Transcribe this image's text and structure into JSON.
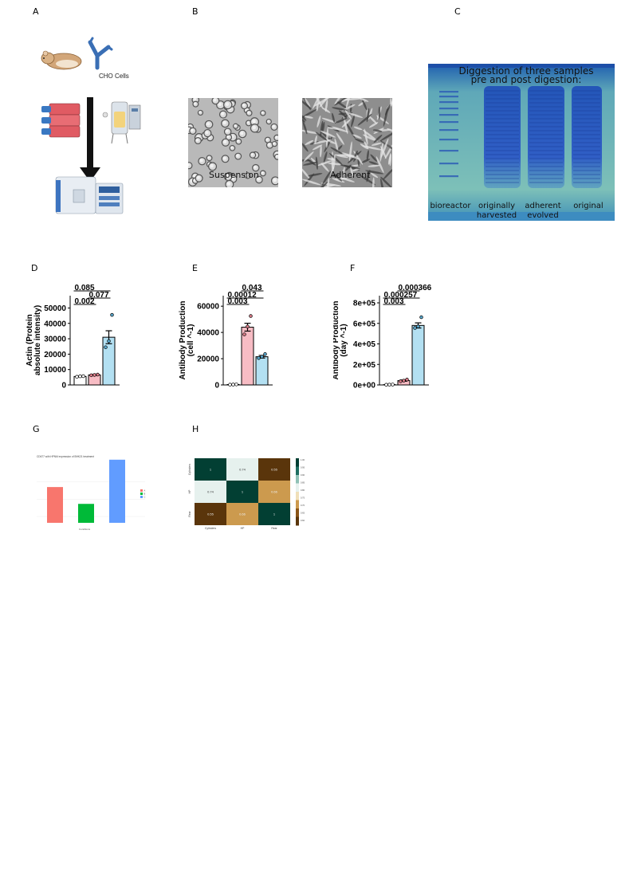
{
  "panel_letters": [
    "A",
    "B",
    "C",
    "D",
    "E",
    "F",
    "G",
    "H"
  ],
  "panel_a": {
    "caption": "CHO Cells",
    "icons": [
      "hamster-icon",
      "antibody-icon",
      "flask-stack-icon",
      "bioreactor-icon",
      "arrow-down-icon",
      "mass-spectrometer-icon"
    ]
  },
  "panel_b": {
    "images": [
      {
        "label": "Suspension"
      },
      {
        "label": "Adherent"
      }
    ]
  },
  "panel_c": {
    "title_line1": "Diggestion of three samples",
    "title_line2": "pre and post digestion:",
    "lanes": [
      {
        "line1": "bioreactor",
        "line2": ""
      },
      {
        "line1": "originally",
        "line2": "harvested"
      },
      {
        "line1": "adherent",
        "line2": "evolved"
      },
      {
        "line1": "original",
        "line2": ""
      }
    ]
  },
  "chart_data": [
    {
      "id": "D",
      "type": "bar",
      "ylabel_line1": "Actin (Protein",
      "ylabel_line2": "absolute intensity)",
      "yticks": [
        "0",
        "10000",
        "20000",
        "30000",
        "40000",
        "50000"
      ],
      "ylim": [
        0,
        58000
      ],
      "values": [
        5500,
        6500,
        31000
      ],
      "errors": [
        300,
        300,
        4200
      ],
      "points": [
        [
          5300,
          5600,
          5700
        ],
        [
          6300,
          6500,
          6700
        ],
        [
          24500,
          28500,
          45500
        ]
      ],
      "bar_colors": [
        "#ffffff",
        "#f7bcc4",
        "#b3e0f2"
      ],
      "pvalues": [
        {
          "text": "0.002",
          "from": 0,
          "to": 1,
          "level": 0
        },
        {
          "text": "0.077",
          "from": 1,
          "to": 2,
          "level": 1
        },
        {
          "text": "0.085",
          "from": 0,
          "to": 2,
          "level": 2
        }
      ]
    },
    {
      "id": "E",
      "type": "bar",
      "ylabel_line1": "Antibody Production",
      "ylabel_line2": "(cell ^-1)",
      "yticks": [
        "0",
        "20000",
        "40000",
        "60000"
      ],
      "ylim": [
        0,
        68000
      ],
      "values": [
        300,
        44000,
        21500
      ],
      "errors": [
        100,
        3000,
        1000
      ],
      "points": [
        [
          200,
          300,
          400
        ],
        [
          38500,
          44500,
          52500
        ],
        [
          20500,
          21500,
          23500
        ]
      ],
      "bar_colors": [
        "#ffffff",
        "#f7bcc4",
        "#b3e0f2"
      ],
      "pvalues": [
        {
          "text": "0.003",
          "from": 0,
          "to": 1,
          "level": 0
        },
        {
          "text": "0.00012",
          "from": 0,
          "to": 2,
          "level": 1
        },
        {
          "text": "0.043",
          "from": 1,
          "to": 2,
          "level": 2
        }
      ]
    },
    {
      "id": "F",
      "type": "bar",
      "ylabel_line1": "Antibody Production",
      "ylabel_line2": "(day ^-1)",
      "yticks": [
        "0e+00",
        "2e+05",
        "4e+05",
        "6e+05",
        "8e+05"
      ],
      "ylim": [
        0,
        870000
      ],
      "values": [
        3000,
        42000,
        580000
      ],
      "errors": [
        1000,
        6000,
        25000
      ],
      "points": [
        [
          2000,
          3000,
          4000
        ],
        [
          36000,
          42000,
          52000
        ],
        [
          555000,
          570000,
          660000
        ]
      ],
      "bar_colors": [
        "#ffffff",
        "#f7bcc4",
        "#b3e0f2"
      ],
      "pvalues": [
        {
          "text": "0.003",
          "from": 0,
          "to": 1,
          "level": 0
        },
        {
          "text": "0.000257",
          "from": 0,
          "to": 2,
          "level": 1
        },
        {
          "text": "0.000366",
          "from": 1,
          "to": 2,
          "level": 2
        }
      ]
    },
    {
      "id": "G",
      "type": "bar",
      "title": "CD677 with HPNM expression of BHK21 treatment",
      "xlabel": "Conditions",
      "values": [
        0.68,
        0.36,
        1.2
      ],
      "bar_colors": [
        "#f8766d",
        "#00ba38",
        "#619cff"
      ],
      "legend": [
        "A",
        "B",
        "C"
      ]
    },
    {
      "id": "H",
      "type": "heatmap",
      "row_labels": [
        "Cylinders",
        "HP",
        "Rear"
      ],
      "col_labels": [
        "Cylinders",
        "HP",
        "Rear"
      ],
      "matrix": [
        [
          1,
          0.74,
          0.55
        ],
        [
          0.74,
          1,
          0.66
        ],
        [
          0.55,
          0.66,
          1
        ]
      ],
      "colorbar_ticks": [
        "1.00",
        "0.95",
        "0.90",
        "0.85",
        "0.80",
        "0.75",
        "0.70",
        "0.65",
        "0.60"
      ],
      "colorbar_range": [
        0.55,
        1.0
      ]
    }
  ]
}
